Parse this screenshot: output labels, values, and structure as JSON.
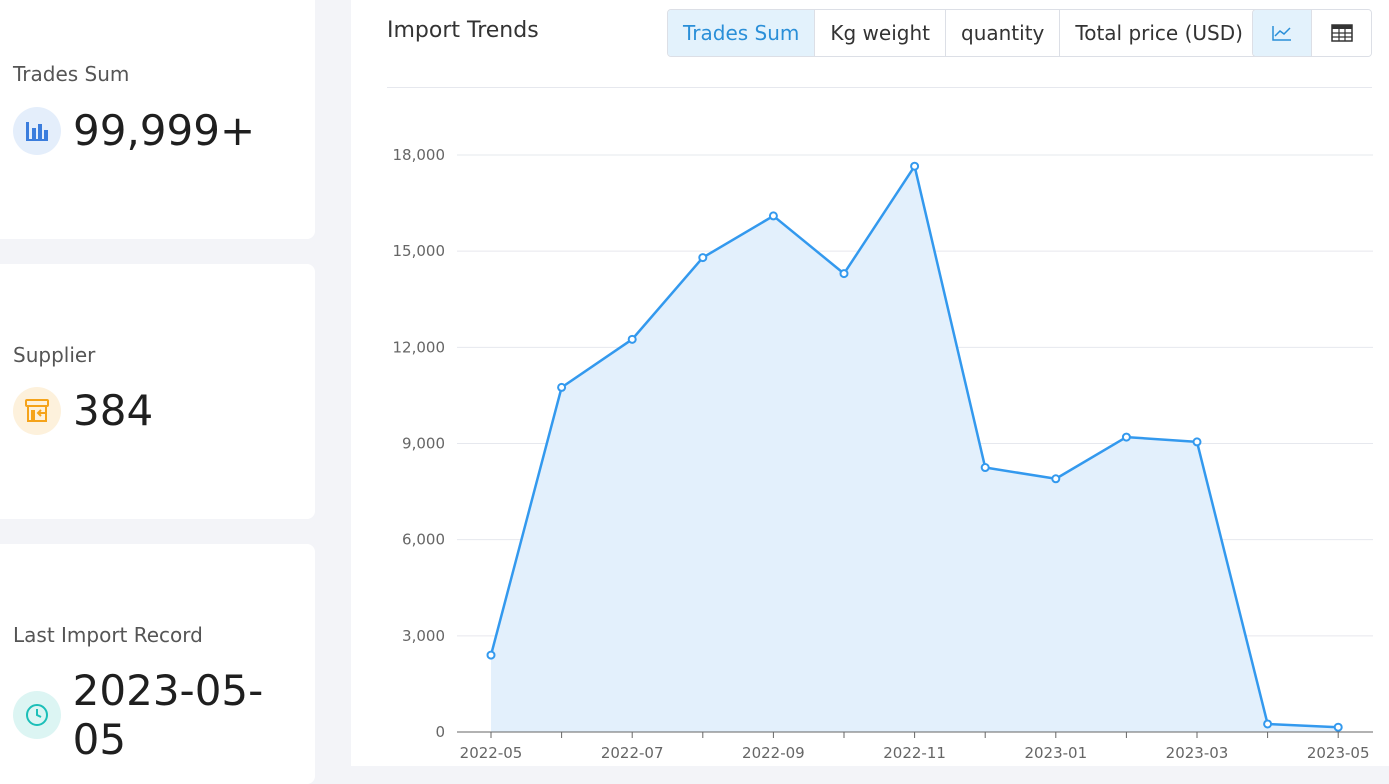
{
  "stats": [
    {
      "label": "Trades Sum",
      "value": "99,999+",
      "icon": "bar-chart-icon",
      "color": "#3b7ddd",
      "bg": "#e4eefb"
    },
    {
      "label": "Supplier",
      "value": "384",
      "icon": "store-icon",
      "color": "#f5a31a",
      "bg": "#fdf1dc"
    },
    {
      "label": "Last Import Record",
      "value": "2023-05-05",
      "icon": "clock-icon",
      "color": "#1cbfb8",
      "bg": "#dcf5f3"
    }
  ],
  "panel": {
    "title": "Import Trends",
    "tabs": [
      "Trades Sum",
      "Kg weight",
      "quantity",
      "Total price (USD)"
    ],
    "active_tab": "Trades Sum",
    "views": [
      "line-chart-icon",
      "table-icon"
    ],
    "active_view": "line-chart-icon"
  },
  "colors": {
    "line": "#3399ee",
    "area": "#e3f0fc",
    "grid": "#e6e8ee",
    "axis": "#666666"
  },
  "chart_data": {
    "type": "area",
    "x": [
      "2022-05",
      "2022-06",
      "2022-07",
      "2022-08",
      "2022-09",
      "2022-10",
      "2022-11",
      "2022-12",
      "2023-01",
      "2023-02",
      "2023-03",
      "2023-04",
      "2023-05"
    ],
    "x_tick_labels": [
      "2022-05",
      "2022-07",
      "2022-09",
      "2022-11",
      "2023-01",
      "2023-03",
      "2023-05"
    ],
    "y_tick_labels": [
      "0",
      "3,000",
      "6,000",
      "9,000",
      "12,000",
      "15,000",
      "18,000"
    ],
    "series": [
      {
        "values": [
          2400,
          10750,
          12250,
          14800,
          16100,
          14300,
          17650,
          8250,
          7900,
          9200,
          9050,
          250,
          150
        ]
      }
    ],
    "ylim": [
      0,
      18000
    ],
    "grid": true
  }
}
